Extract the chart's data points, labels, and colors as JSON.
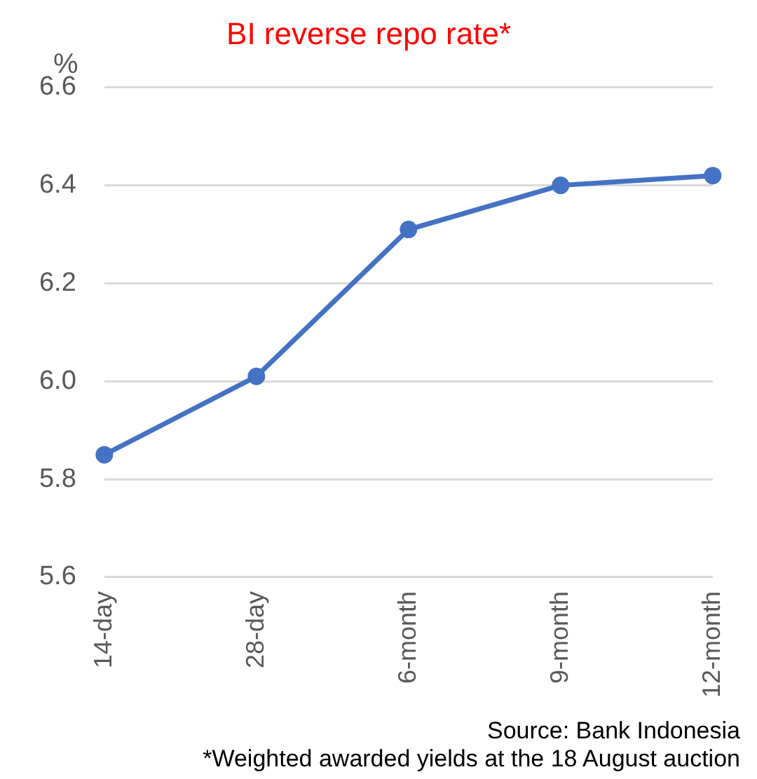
{
  "chart_data": {
    "type": "line",
    "title": "BI reverse repo rate*",
    "ylabel": "%",
    "categories": [
      "14-day",
      "28-day",
      "6-month",
      "9-month",
      "12-month"
    ],
    "series": [
      {
        "color": "#4472c4",
        "values": [
          5.85,
          6.01,
          6.31,
          6.4,
          6.42
        ]
      }
    ],
    "ylim": [
      5.6,
      6.6
    ],
    "yticks": [
      {
        "value": 5.6,
        "label": "5.6"
      },
      {
        "value": 5.8,
        "label": "5.8"
      },
      {
        "value": 6.0,
        "label": "6.0"
      },
      {
        "value": 6.2,
        "label": "6.2"
      },
      {
        "value": 6.4,
        "label": "6.4"
      },
      {
        "value": 6.6,
        "label": "6.6"
      }
    ],
    "grid": "y",
    "legend": false,
    "marker": "circle",
    "line_style": "solid",
    "annotations": [
      "Source: Bank Indonesia",
      "*Weighted awarded yields at the 18 August auction"
    ]
  }
}
